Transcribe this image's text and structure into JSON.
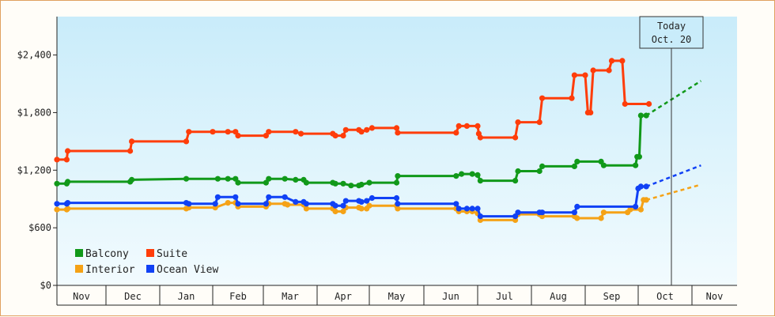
{
  "chart_data": {
    "type": "line",
    "title": "",
    "xlabel": "",
    "ylabel": "",
    "x_ticks": [
      "Nov",
      "Dec",
      "Jan",
      "Feb",
      "Mar",
      "Apr",
      "May",
      "Jun",
      "Jul",
      "Aug",
      "Sep",
      "Oct",
      "Nov"
    ],
    "y_ticks": [
      "$0",
      "$600",
      "$1,200",
      "$1,800",
      "$2,400"
    ],
    "ylim": [
      0,
      2800
    ],
    "grid": false,
    "legend_placement": "bottom-left",
    "today_annotation": {
      "line1": "Today",
      "line2": "Oct. 20",
      "month_position": 11.0
    },
    "series": [
      {
        "name": "Balcony",
        "color": "#11991a",
        "points": [
          [
            0,
            1060
          ],
          [
            0.2,
            1060
          ],
          [
            0.22,
            1080
          ],
          [
            1.45,
            1080
          ],
          [
            1.48,
            1100
          ],
          [
            2.5,
            1110
          ],
          [
            3.1,
            1110
          ],
          [
            3.3,
            1110
          ],
          [
            3.45,
            1110
          ],
          [
            3.5,
            1070
          ],
          [
            4.05,
            1070
          ],
          [
            4.1,
            1110
          ],
          [
            4.4,
            1110
          ],
          [
            4.6,
            1100
          ],
          [
            4.75,
            1100
          ],
          [
            4.8,
            1070
          ],
          [
            5.3,
            1070
          ],
          [
            5.35,
            1060
          ],
          [
            5.5,
            1060
          ],
          [
            5.65,
            1040
          ],
          [
            5.8,
            1040
          ],
          [
            5.85,
            1050
          ],
          [
            6.0,
            1070
          ],
          [
            6.5,
            1070
          ],
          [
            6.52,
            1140
          ],
          [
            7.6,
            1140
          ],
          [
            7.7,
            1160
          ],
          [
            7.9,
            1160
          ],
          [
            8.0,
            1150
          ],
          [
            8.05,
            1090
          ],
          [
            8.7,
            1090
          ],
          [
            8.75,
            1190
          ],
          [
            9.15,
            1190
          ],
          [
            9.2,
            1240
          ],
          [
            9.8,
            1240
          ],
          [
            9.85,
            1290
          ],
          [
            10.3,
            1290
          ],
          [
            10.35,
            1250
          ],
          [
            10.95,
            1250
          ],
          [
            10.98,
            1340
          ],
          [
            11.02,
            1340
          ],
          [
            11.05,
            1770
          ],
          [
            11.15,
            1770
          ]
        ],
        "projection": [
          [
            11.15,
            1770
          ],
          [
            12.2,
            2130
          ]
        ]
      },
      {
        "name": "Suite",
        "color": "#ff3d0a",
        "points": [
          [
            0,
            1310
          ],
          [
            0.2,
            1310
          ],
          [
            0.22,
            1400
          ],
          [
            1.45,
            1400
          ],
          [
            1.48,
            1500
          ],
          [
            2.5,
            1500
          ],
          [
            2.55,
            1600
          ],
          [
            3.0,
            1600
          ],
          [
            3.3,
            1600
          ],
          [
            3.45,
            1600
          ],
          [
            3.5,
            1560
          ],
          [
            4.05,
            1560
          ],
          [
            4.1,
            1600
          ],
          [
            4.6,
            1600
          ],
          [
            4.7,
            1580
          ],
          [
            5.3,
            1580
          ],
          [
            5.35,
            1560
          ],
          [
            5.5,
            1560
          ],
          [
            5.55,
            1620
          ],
          [
            5.8,
            1620
          ],
          [
            5.85,
            1600
          ],
          [
            5.95,
            1620
          ],
          [
            6.05,
            1640
          ],
          [
            6.5,
            1640
          ],
          [
            6.52,
            1590
          ],
          [
            7.6,
            1590
          ],
          [
            7.65,
            1660
          ],
          [
            7.8,
            1660
          ],
          [
            8.0,
            1660
          ],
          [
            8.02,
            1580
          ],
          [
            8.05,
            1540
          ],
          [
            8.7,
            1540
          ],
          [
            8.75,
            1700
          ],
          [
            9.15,
            1700
          ],
          [
            9.2,
            1950
          ],
          [
            9.75,
            1950
          ],
          [
            9.8,
            2190
          ],
          [
            10.0,
            2190
          ],
          [
            10.05,
            1800
          ],
          [
            10.1,
            1800
          ],
          [
            10.15,
            2240
          ],
          [
            10.45,
            2240
          ],
          [
            10.5,
            2340
          ],
          [
            10.7,
            2340
          ],
          [
            10.75,
            1890
          ],
          [
            11.2,
            1890
          ]
        ]
      },
      {
        "name": "Interior",
        "color": "#f5a216",
        "points": [
          [
            0,
            790
          ],
          [
            0.2,
            790
          ],
          [
            0.22,
            800
          ],
          [
            2.5,
            800
          ],
          [
            2.55,
            810
          ],
          [
            3.05,
            810
          ],
          [
            3.3,
            860
          ],
          [
            3.45,
            860
          ],
          [
            3.5,
            820
          ],
          [
            4.05,
            820
          ],
          [
            4.1,
            850
          ],
          [
            4.4,
            850
          ],
          [
            4.45,
            840
          ],
          [
            4.75,
            840
          ],
          [
            4.8,
            800
          ],
          [
            5.3,
            800
          ],
          [
            5.35,
            770
          ],
          [
            5.5,
            770
          ],
          [
            5.55,
            810
          ],
          [
            5.8,
            810
          ],
          [
            5.85,
            800
          ],
          [
            5.95,
            800
          ],
          [
            6.0,
            830
          ],
          [
            6.5,
            830
          ],
          [
            6.52,
            800
          ],
          [
            7.6,
            800
          ],
          [
            7.65,
            770
          ],
          [
            7.8,
            770
          ],
          [
            7.9,
            770
          ],
          [
            8.0,
            750
          ],
          [
            8.05,
            680
          ],
          [
            8.7,
            680
          ],
          [
            8.75,
            740
          ],
          [
            9.15,
            740
          ],
          [
            9.2,
            720
          ],
          [
            9.8,
            720
          ],
          [
            9.85,
            700
          ],
          [
            10.3,
            700
          ],
          [
            10.35,
            760
          ],
          [
            10.8,
            760
          ],
          [
            10.85,
            790
          ],
          [
            11.05,
            790
          ],
          [
            11.1,
            890
          ],
          [
            11.15,
            890
          ]
        ],
        "projection": [
          [
            11.15,
            890
          ],
          [
            12.2,
            1050
          ]
        ]
      },
      {
        "name": "Ocean View",
        "color": "#1041f5",
        "points": [
          [
            0,
            850
          ],
          [
            0.2,
            850
          ],
          [
            0.22,
            860
          ],
          [
            2.5,
            860
          ],
          [
            2.55,
            850
          ],
          [
            3.05,
            850
          ],
          [
            3.1,
            920
          ],
          [
            3.45,
            920
          ],
          [
            3.5,
            850
          ],
          [
            4.05,
            850
          ],
          [
            4.1,
            920
          ],
          [
            4.4,
            920
          ],
          [
            4.6,
            870
          ],
          [
            4.75,
            870
          ],
          [
            4.8,
            850
          ],
          [
            5.3,
            850
          ],
          [
            5.35,
            830
          ],
          [
            5.5,
            830
          ],
          [
            5.55,
            880
          ],
          [
            5.8,
            880
          ],
          [
            5.85,
            870
          ],
          [
            5.95,
            880
          ],
          [
            6.05,
            910
          ],
          [
            6.5,
            910
          ],
          [
            6.52,
            850
          ],
          [
            7.6,
            850
          ],
          [
            7.65,
            800
          ],
          [
            7.8,
            800
          ],
          [
            7.9,
            800
          ],
          [
            8.0,
            800
          ],
          [
            8.05,
            720
          ],
          [
            8.7,
            720
          ],
          [
            8.75,
            760
          ],
          [
            9.15,
            760
          ],
          [
            9.2,
            760
          ],
          [
            9.8,
            760
          ],
          [
            9.85,
            820
          ],
          [
            10.95,
            820
          ],
          [
            11.0,
            1010
          ],
          [
            11.05,
            1030
          ],
          [
            11.15,
            1030
          ]
        ],
        "projection": [
          [
            11.15,
            1030
          ],
          [
            12.2,
            1250
          ]
        ]
      }
    ]
  }
}
